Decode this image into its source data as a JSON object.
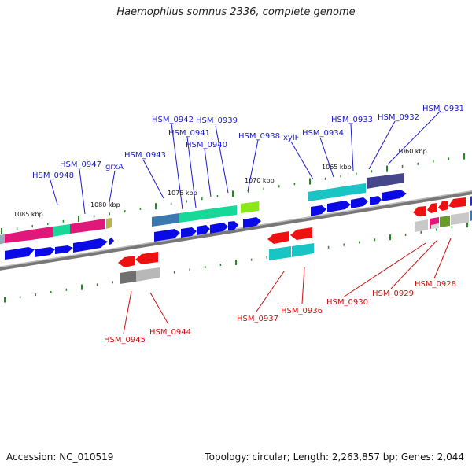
{
  "title": "Haemophilus somnus 2336, complete genome",
  "footer": {
    "accession": "Accession: NC_010519",
    "summary": "Topology: circular; Length: 2,263,857 bp; Genes: 2,044"
  },
  "colors": {
    "forward_label": "#1a1acc",
    "reverse_label": "#cc1111",
    "backbone": "#8c8c8c",
    "cds_forward": "#0a0ae6",
    "cds_reverse": "#ee1111",
    "ticks": "#1f8a1f"
  },
  "scale": [
    {
      "label": "1085 kbp"
    },
    {
      "label": "1080 kbp"
    },
    {
      "label": "1075 kbp"
    },
    {
      "label": "1070 kbp"
    },
    {
      "label": "1065 kbp"
    },
    {
      "label": "1060 kbp"
    }
  ],
  "forward_genes": [
    {
      "label": "HSM_0948"
    },
    {
      "label": "HSM_0947"
    },
    {
      "label": "grxA"
    },
    {
      "label": "HSM_0943"
    },
    {
      "label": "HSM_0942"
    },
    {
      "label": "HSM_0941"
    },
    {
      "label": "HSM_0940"
    },
    {
      "label": "HSM_0939"
    },
    {
      "label": "HSM_0938"
    },
    {
      "label": "xylF"
    },
    {
      "label": "HSM_0934"
    },
    {
      "label": "HSM_0933"
    },
    {
      "label": "HSM_0932"
    },
    {
      "label": "HSM_0931"
    }
  ],
  "reverse_genes": [
    {
      "label": "HSM_0945"
    },
    {
      "label": "HSM_0944"
    },
    {
      "label": "HSM_0937"
    },
    {
      "label": "HSM_0936"
    },
    {
      "label": "HSM_0930"
    },
    {
      "label": "HSM_0929"
    },
    {
      "label": "HSM_0928"
    }
  ]
}
